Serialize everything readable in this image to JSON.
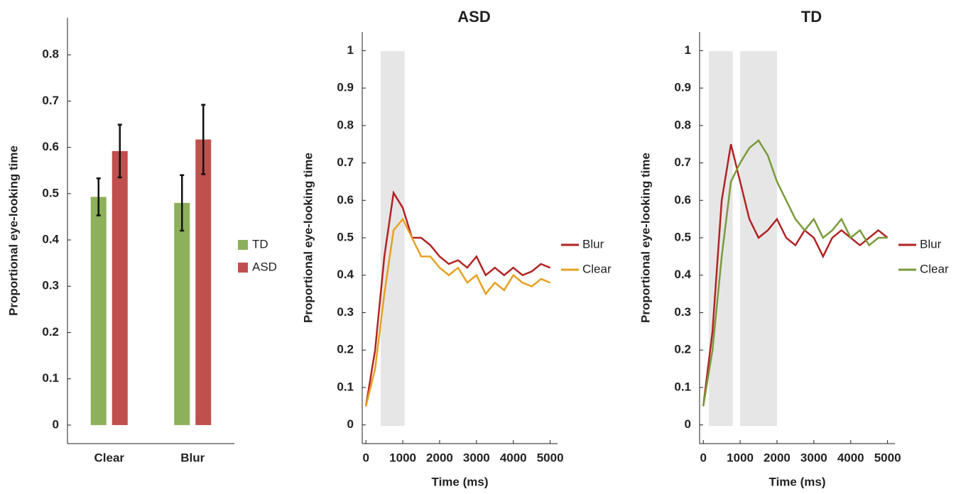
{
  "chart_data": [
    {
      "type": "bar",
      "ylabel": "Proportional eye-looking time",
      "categories": [
        "Clear",
        "Blur"
      ],
      "series": [
        {
          "name": "TD",
          "color": "#8db05a",
          "values": [
            0.493,
            0.48
          ],
          "errors": [
            0.04,
            0.06
          ]
        },
        {
          "name": "ASD",
          "color": "#c0504d",
          "values": [
            0.592,
            0.617
          ],
          "errors": [
            0.057,
            0.075
          ]
        }
      ],
      "ylim": [
        -0.04,
        0.88
      ],
      "yticks": [
        0,
        0.1,
        0.2,
        0.3,
        0.4,
        0.5,
        0.6,
        0.7,
        0.8
      ]
    },
    {
      "type": "line",
      "title": "ASD",
      "ylabel": "Proportional eye-looking time",
      "xlabel": "Time (ms)",
      "x": [
        0,
        250,
        500,
        750,
        1000,
        1250,
        1500,
        1750,
        2000,
        2250,
        2500,
        2750,
        3000,
        3250,
        3500,
        3750,
        4000,
        4250,
        4500,
        4750,
        5000
      ],
      "series": [
        {
          "name": "Blur",
          "color": "#b22222",
          "values": [
            0.05,
            0.2,
            0.45,
            0.62,
            0.58,
            0.5,
            0.5,
            0.48,
            0.45,
            0.43,
            0.44,
            0.42,
            0.45,
            0.4,
            0.42,
            0.4,
            0.42,
            0.4,
            0.41,
            0.43,
            0.42
          ]
        },
        {
          "name": "Clear",
          "color": "#e8a020",
          "values": [
            0.05,
            0.15,
            0.35,
            0.52,
            0.55,
            0.5,
            0.45,
            0.45,
            0.42,
            0.4,
            0.42,
            0.38,
            0.4,
            0.35,
            0.38,
            0.36,
            0.4,
            0.38,
            0.37,
            0.39,
            0.38
          ]
        }
      ],
      "shaded": [
        [
          400,
          1050
        ]
      ],
      "xlim": [
        -100,
        5200
      ],
      "xticks": [
        0,
        1000,
        2000,
        3000,
        4000,
        5000
      ],
      "ylim": [
        -0.05,
        1.05
      ],
      "yticks": [
        0,
        0.1,
        0.2,
        0.3,
        0.4,
        0.5,
        0.6,
        0.7,
        0.8,
        0.9,
        1
      ]
    },
    {
      "type": "line",
      "title": "TD",
      "ylabel": "Proportional eye-looking time",
      "xlabel": "Time (ms)",
      "x": [
        0,
        250,
        500,
        750,
        1000,
        1250,
        1500,
        1750,
        2000,
        2250,
        2500,
        2750,
        3000,
        3250,
        3500,
        3750,
        4000,
        4250,
        4500,
        4750,
        5000
      ],
      "series": [
        {
          "name": "Blur",
          "color": "#b22222",
          "values": [
            0.05,
            0.25,
            0.6,
            0.75,
            0.65,
            0.55,
            0.5,
            0.52,
            0.55,
            0.5,
            0.48,
            0.52,
            0.5,
            0.45,
            0.5,
            0.52,
            0.5,
            0.48,
            0.5,
            0.52,
            0.5
          ]
        },
        {
          "name": "Clear",
          "color": "#7a9a3a",
          "values": [
            0.05,
            0.2,
            0.45,
            0.65,
            0.7,
            0.74,
            0.76,
            0.72,
            0.65,
            0.6,
            0.55,
            0.52,
            0.55,
            0.5,
            0.52,
            0.55,
            0.5,
            0.52,
            0.48,
            0.5,
            0.5
          ]
        }
      ],
      "shaded": [
        [
          150,
          800
        ],
        [
          1000,
          2000
        ]
      ],
      "xlim": [
        -100,
        5200
      ],
      "xticks": [
        0,
        1000,
        2000,
        3000,
        4000,
        5000
      ],
      "ylim": [
        -0.05,
        1.05
      ],
      "yticks": [
        0,
        0.1,
        0.2,
        0.3,
        0.4,
        0.5,
        0.6,
        0.7,
        0.8,
        0.9,
        1
      ]
    }
  ]
}
